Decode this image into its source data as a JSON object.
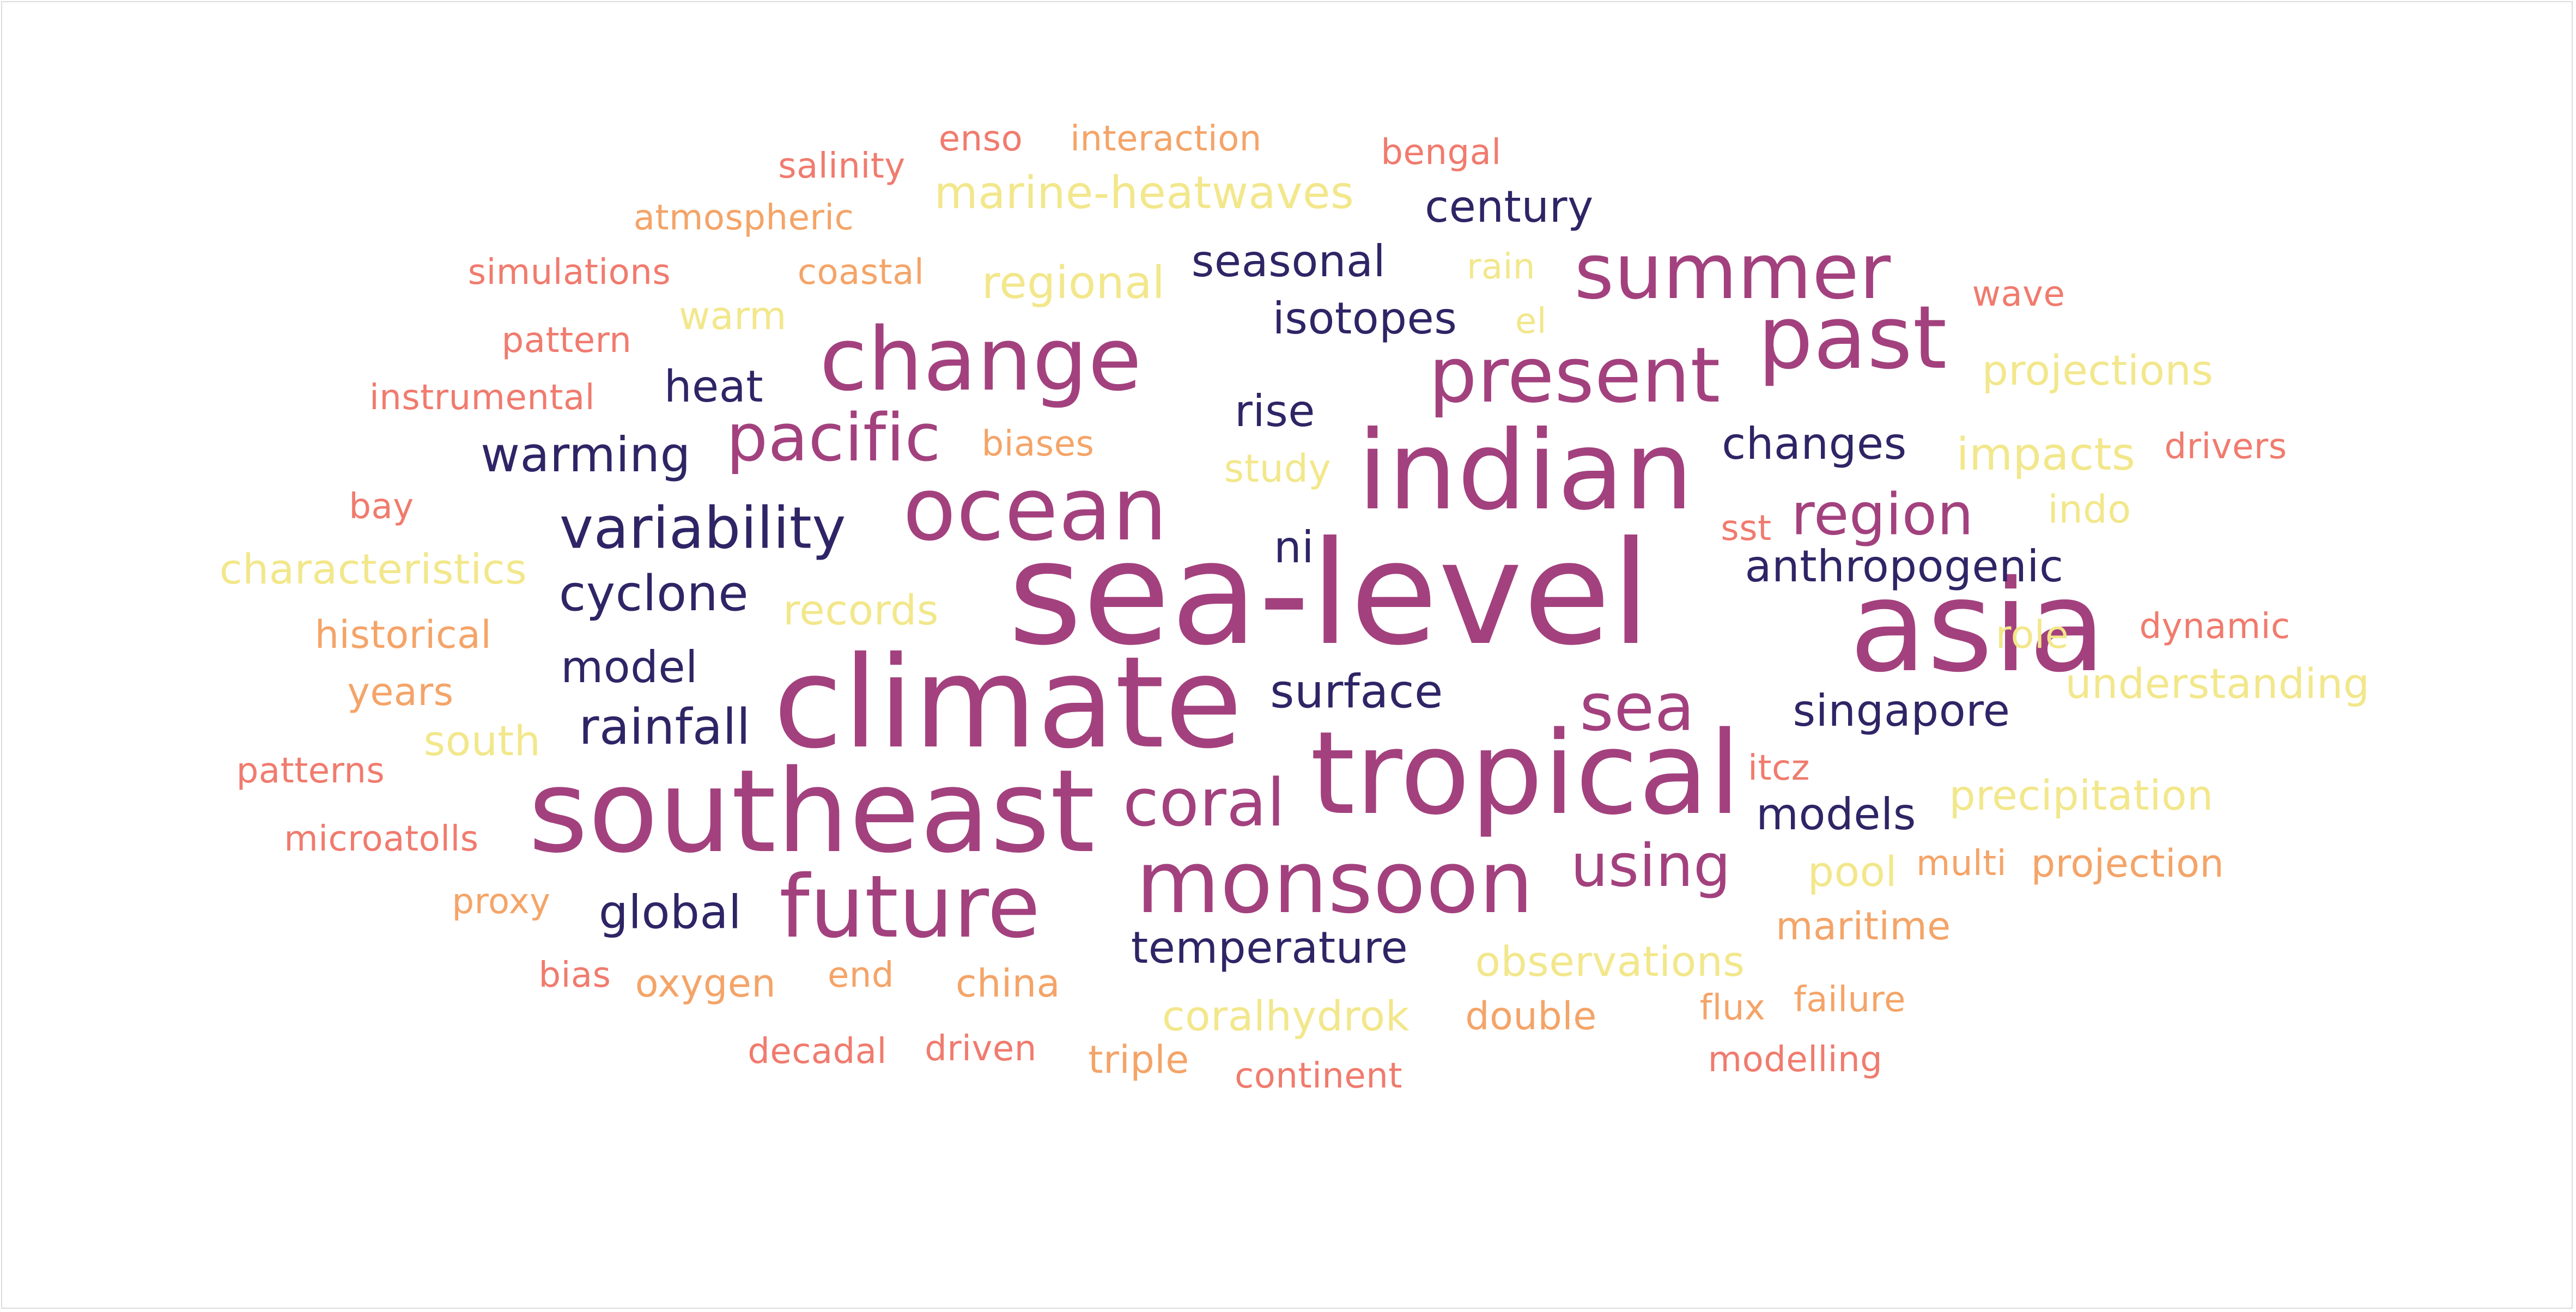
{
  "palette": {
    "dark": "#2e2566",
    "magenta": "#a3417e",
    "coral": "#f07b6e",
    "orange": "#f4a468",
    "yellow": "#f2e78b"
  },
  "words": [
    {
      "text": "sea-level",
      "tone": "magenta"
    },
    {
      "text": "asia",
      "tone": "magenta"
    },
    {
      "text": "climate",
      "tone": "magenta"
    },
    {
      "text": "southeast",
      "tone": "magenta"
    },
    {
      "text": "tropical",
      "tone": "magenta"
    },
    {
      "text": "indian",
      "tone": "magenta"
    },
    {
      "text": "change",
      "tone": "magenta"
    },
    {
      "text": "ocean",
      "tone": "magenta"
    },
    {
      "text": "monsoon",
      "tone": "magenta"
    },
    {
      "text": "future",
      "tone": "magenta"
    },
    {
      "text": "past",
      "tone": "magenta"
    },
    {
      "text": "summer",
      "tone": "magenta"
    },
    {
      "text": "present",
      "tone": "magenta"
    },
    {
      "text": "pacific",
      "tone": "magenta"
    },
    {
      "text": "coral",
      "tone": "magenta"
    },
    {
      "text": "sea",
      "tone": "magenta"
    },
    {
      "text": "using",
      "tone": "magenta"
    },
    {
      "text": "region",
      "tone": "magenta"
    },
    {
      "text": "variability",
      "tone": "dark"
    },
    {
      "text": "cyclone",
      "tone": "dark"
    },
    {
      "text": "warming",
      "tone": "dark"
    },
    {
      "text": "rainfall",
      "tone": "dark"
    },
    {
      "text": "model",
      "tone": "dark"
    },
    {
      "text": "global",
      "tone": "dark"
    },
    {
      "text": "heat",
      "tone": "dark"
    },
    {
      "text": "surface",
      "tone": "dark"
    },
    {
      "text": "temperature",
      "tone": "dark"
    },
    {
      "text": "seasonal",
      "tone": "dark"
    },
    {
      "text": "isotopes",
      "tone": "dark"
    },
    {
      "text": "rise",
      "tone": "dark"
    },
    {
      "text": "ni",
      "tone": "dark"
    },
    {
      "text": "century",
      "tone": "dark"
    },
    {
      "text": "changes",
      "tone": "dark"
    },
    {
      "text": "anthropogenic",
      "tone": "dark"
    },
    {
      "text": "singapore",
      "tone": "dark"
    },
    {
      "text": "models",
      "tone": "dark"
    },
    {
      "text": "enso",
      "tone": "coral"
    },
    {
      "text": "interaction",
      "tone": "orange"
    },
    {
      "text": "bengal",
      "tone": "coral"
    },
    {
      "text": "salinity",
      "tone": "coral"
    },
    {
      "text": "marine-heatwaves",
      "tone": "yellow"
    },
    {
      "text": "atmospheric",
      "tone": "orange"
    },
    {
      "text": "simulations",
      "tone": "coral"
    },
    {
      "text": "coastal",
      "tone": "orange"
    },
    {
      "text": "regional",
      "tone": "yellow"
    },
    {
      "text": "rain",
      "tone": "yellow"
    },
    {
      "text": "warm",
      "tone": "yellow"
    },
    {
      "text": "el",
      "tone": "yellow"
    },
    {
      "text": "wave",
      "tone": "coral"
    },
    {
      "text": "pattern",
      "tone": "coral"
    },
    {
      "text": "instrumental",
      "tone": "coral"
    },
    {
      "text": "projections",
      "tone": "yellow"
    },
    {
      "text": "biases",
      "tone": "orange"
    },
    {
      "text": "study",
      "tone": "yellow"
    },
    {
      "text": "impacts",
      "tone": "yellow"
    },
    {
      "text": "drivers",
      "tone": "coral"
    },
    {
      "text": "bay",
      "tone": "coral"
    },
    {
      "text": "sst",
      "tone": "coral"
    },
    {
      "text": "indo",
      "tone": "yellow"
    },
    {
      "text": "characteristics",
      "tone": "yellow"
    },
    {
      "text": "records",
      "tone": "yellow"
    },
    {
      "text": "historical",
      "tone": "orange"
    },
    {
      "text": "role",
      "tone": "yellow"
    },
    {
      "text": "dynamic",
      "tone": "coral"
    },
    {
      "text": "years",
      "tone": "orange"
    },
    {
      "text": "understanding",
      "tone": "yellow"
    },
    {
      "text": "south",
      "tone": "yellow"
    },
    {
      "text": "patterns",
      "tone": "coral"
    },
    {
      "text": "itcz",
      "tone": "coral"
    },
    {
      "text": "precipitation",
      "tone": "yellow"
    },
    {
      "text": "microatolls",
      "tone": "coral"
    },
    {
      "text": "pool",
      "tone": "yellow"
    },
    {
      "text": "multi",
      "tone": "orange"
    },
    {
      "text": "projection",
      "tone": "orange"
    },
    {
      "text": "proxy",
      "tone": "orange"
    },
    {
      "text": "maritime",
      "tone": "orange"
    },
    {
      "text": "observations",
      "tone": "yellow"
    },
    {
      "text": "bias",
      "tone": "coral"
    },
    {
      "text": "oxygen",
      "tone": "orange"
    },
    {
      "text": "end",
      "tone": "orange"
    },
    {
      "text": "china",
      "tone": "orange"
    },
    {
      "text": "coralhydrok",
      "tone": "yellow"
    },
    {
      "text": "double",
      "tone": "orange"
    },
    {
      "text": "flux",
      "tone": "orange"
    },
    {
      "text": "failure",
      "tone": "orange"
    },
    {
      "text": "decadal",
      "tone": "coral"
    },
    {
      "text": "driven",
      "tone": "coral"
    },
    {
      "text": "triple",
      "tone": "orange"
    },
    {
      "text": "continent",
      "tone": "coral"
    },
    {
      "text": "modelling",
      "tone": "coral"
    }
  ]
}
